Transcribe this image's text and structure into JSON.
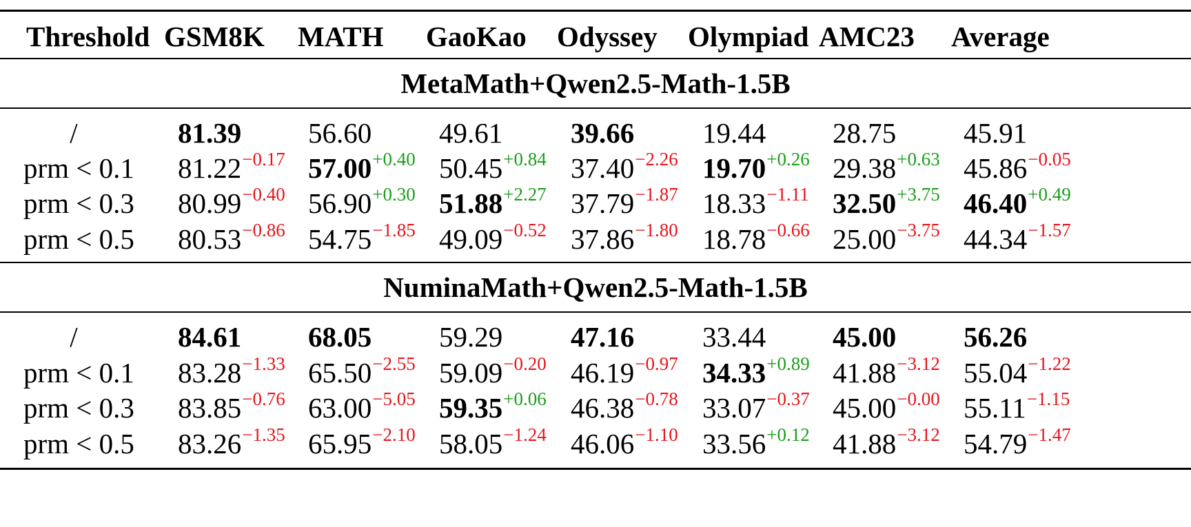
{
  "table": {
    "headers": [
      "Threshold",
      "GSM8K",
      "MATH",
      "GaoKao",
      "Odyssey",
      "Olympiad",
      "AMC23",
      "Average"
    ],
    "colors": {
      "negative_delta": "#e8141b",
      "positive_delta": "#1a9e1a"
    },
    "sections": [
      {
        "title": "MetaMath+Qwen2.5-Math-1.5B",
        "rows": [
          {
            "threshold": "/",
            "cells": [
              {
                "value": "81.39",
                "delta": "",
                "bold": true
              },
              {
                "value": "56.60",
                "delta": "",
                "bold": false
              },
              {
                "value": "49.61",
                "delta": "",
                "bold": false
              },
              {
                "value": "39.66",
                "delta": "",
                "bold": true
              },
              {
                "value": "19.44",
                "delta": "",
                "bold": false
              },
              {
                "value": "28.75",
                "delta": "",
                "bold": false
              },
              {
                "value": "45.91",
                "delta": "",
                "bold": false
              }
            ]
          },
          {
            "threshold": "prm < 0.1",
            "cells": [
              {
                "value": "81.22",
                "delta": "−0.17",
                "sign": "neg",
                "bold": false
              },
              {
                "value": "57.00",
                "delta": "+0.40",
                "sign": "pos",
                "bold": true
              },
              {
                "value": "50.45",
                "delta": "+0.84",
                "sign": "pos",
                "bold": false
              },
              {
                "value": "37.40",
                "delta": "−2.26",
                "sign": "neg",
                "bold": false
              },
              {
                "value": "19.70",
                "delta": "+0.26",
                "sign": "pos",
                "bold": true
              },
              {
                "value": "29.38",
                "delta": "+0.63",
                "sign": "pos",
                "bold": false
              },
              {
                "value": "45.86",
                "delta": "−0.05",
                "sign": "neg",
                "bold": false
              }
            ]
          },
          {
            "threshold": "prm < 0.3",
            "cells": [
              {
                "value": "80.99",
                "delta": "−0.40",
                "sign": "neg",
                "bold": false
              },
              {
                "value": "56.90",
                "delta": "+0.30",
                "sign": "pos",
                "bold": false
              },
              {
                "value": "51.88",
                "delta": "+2.27",
                "sign": "pos",
                "bold": true
              },
              {
                "value": "37.79",
                "delta": "−1.87",
                "sign": "neg",
                "bold": false
              },
              {
                "value": "18.33",
                "delta": "−1.11",
                "sign": "neg",
                "bold": false
              },
              {
                "value": "32.50",
                "delta": "+3.75",
                "sign": "pos",
                "bold": true
              },
              {
                "value": "46.40",
                "delta": "+0.49",
                "sign": "pos",
                "bold": true
              }
            ]
          },
          {
            "threshold": "prm < 0.5",
            "cells": [
              {
                "value": "80.53",
                "delta": "−0.86",
                "sign": "neg",
                "bold": false
              },
              {
                "value": "54.75",
                "delta": "−1.85",
                "sign": "neg",
                "bold": false
              },
              {
                "value": "49.09",
                "delta": "−0.52",
                "sign": "neg",
                "bold": false
              },
              {
                "value": "37.86",
                "delta": "−1.80",
                "sign": "neg",
                "bold": false
              },
              {
                "value": "18.78",
                "delta": "−0.66",
                "sign": "neg",
                "bold": false
              },
              {
                "value": "25.00",
                "delta": "−3.75",
                "sign": "neg",
                "bold": false
              },
              {
                "value": "44.34",
                "delta": "−1.57",
                "sign": "neg",
                "bold": false
              }
            ]
          }
        ]
      },
      {
        "title": "NuminaMath+Qwen2.5-Math-1.5B",
        "rows": [
          {
            "threshold": "/",
            "cells": [
              {
                "value": "84.61",
                "delta": "",
                "bold": true
              },
              {
                "value": "68.05",
                "delta": "",
                "bold": true
              },
              {
                "value": "59.29",
                "delta": "",
                "bold": false
              },
              {
                "value": "47.16",
                "delta": "",
                "bold": true
              },
              {
                "value": "33.44",
                "delta": "",
                "bold": false
              },
              {
                "value": "45.00",
                "delta": "",
                "bold": true
              },
              {
                "value": "56.26",
                "delta": "",
                "bold": true
              }
            ]
          },
          {
            "threshold": "prm < 0.1",
            "cells": [
              {
                "value": "83.28",
                "delta": "−1.33",
                "sign": "neg",
                "bold": false
              },
              {
                "value": "65.50",
                "delta": "−2.55",
                "sign": "neg",
                "bold": false
              },
              {
                "value": "59.09",
                "delta": "−0.20",
                "sign": "neg",
                "bold": false
              },
              {
                "value": "46.19",
                "delta": "−0.97",
                "sign": "neg",
                "bold": false
              },
              {
                "value": "34.33",
                "delta": "+0.89",
                "sign": "pos",
                "bold": true
              },
              {
                "value": "41.88",
                "delta": "−3.12",
                "sign": "neg",
                "bold": false
              },
              {
                "value": "55.04",
                "delta": "−1.22",
                "sign": "neg",
                "bold": false
              }
            ]
          },
          {
            "threshold": "prm < 0.3",
            "cells": [
              {
                "value": "83.85",
                "delta": "−0.76",
                "sign": "neg",
                "bold": false
              },
              {
                "value": "63.00",
                "delta": "−5.05",
                "sign": "neg",
                "bold": false
              },
              {
                "value": "59.35",
                "delta": "+0.06",
                "sign": "pos",
                "bold": true
              },
              {
                "value": "46.38",
                "delta": "−0.78",
                "sign": "neg",
                "bold": false
              },
              {
                "value": "33.07",
                "delta": "−0.37",
                "sign": "neg",
                "bold": false
              },
              {
                "value": "45.00",
                "delta": "−0.00",
                "sign": "neg",
                "bold": false
              },
              {
                "value": "55.11",
                "delta": "−1.15",
                "sign": "neg",
                "bold": false
              }
            ]
          },
          {
            "threshold": "prm < 0.5",
            "cells": [
              {
                "value": "83.26",
                "delta": "−1.35",
                "sign": "neg",
                "bold": false
              },
              {
                "value": "65.95",
                "delta": "−2.10",
                "sign": "neg",
                "bold": false
              },
              {
                "value": "58.05",
                "delta": "−1.24",
                "sign": "neg",
                "bold": false
              },
              {
                "value": "46.06",
                "delta": "−1.10",
                "sign": "neg",
                "bold": false
              },
              {
                "value": "33.56",
                "delta": "+0.12",
                "sign": "pos",
                "bold": false
              },
              {
                "value": "41.88",
                "delta": "−3.12",
                "sign": "neg",
                "bold": false
              },
              {
                "value": "54.79",
                "delta": "−1.47",
                "sign": "neg",
                "bold": false
              }
            ]
          }
        ]
      }
    ]
  }
}
